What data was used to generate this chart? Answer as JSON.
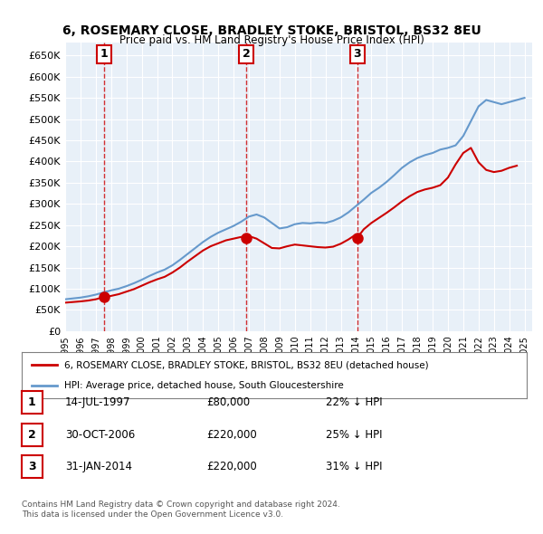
{
  "title1": "6, ROSEMARY CLOSE, BRADLEY STOKE, BRISTOL, BS32 8EU",
  "title2": "Price paid vs. HM Land Registry's House Price Index (HPI)",
  "ylabel": "",
  "xlabel": "",
  "xmin": 1995.0,
  "xmax": 2025.5,
  "ymin": 0,
  "ymax": 680000,
  "yticks": [
    0,
    50000,
    100000,
    150000,
    200000,
    250000,
    300000,
    350000,
    400000,
    450000,
    500000,
    550000,
    600000,
    650000
  ],
  "ytick_labels": [
    "£0",
    "£50K",
    "£100K",
    "£150K",
    "£200K",
    "£250K",
    "£300K",
    "£350K",
    "£400K",
    "£450K",
    "£500K",
    "£550K",
    "£600K",
    "£650K"
  ],
  "sale_dates": [
    1997.54,
    2006.83,
    2014.08
  ],
  "sale_prices": [
    80000,
    220000,
    220000
  ],
  "sale_labels": [
    "1",
    "2",
    "3"
  ],
  "hpi_years": [
    1995,
    1995.5,
    1996,
    1996.5,
    1997,
    1997.5,
    1998,
    1998.5,
    1999,
    1999.5,
    2000,
    2000.5,
    2001,
    2001.5,
    2002,
    2002.5,
    2003,
    2003.5,
    2004,
    2004.5,
    2005,
    2005.5,
    2006,
    2006.5,
    2007,
    2007.5,
    2008,
    2008.5,
    2009,
    2009.5,
    2010,
    2010.5,
    2011,
    2011.5,
    2012,
    2012.5,
    2013,
    2013.5,
    2014,
    2014.5,
    2015,
    2015.5,
    2016,
    2016.5,
    2017,
    2017.5,
    2018,
    2018.5,
    2019,
    2019.5,
    2020,
    2020.5,
    2021,
    2021.5,
    2022,
    2022.5,
    2023,
    2023.5,
    2024,
    2024.5,
    2025
  ],
  "hpi_values": [
    75000,
    77000,
    79000,
    82000,
    86000,
    91000,
    96000,
    100000,
    106000,
    113000,
    121000,
    130000,
    138000,
    145000,
    155000,
    168000,
    182000,
    196000,
    210000,
    222000,
    232000,
    240000,
    248000,
    258000,
    270000,
    275000,
    268000,
    255000,
    242000,
    245000,
    252000,
    255000,
    254000,
    256000,
    255000,
    260000,
    268000,
    280000,
    295000,
    310000,
    326000,
    338000,
    352000,
    368000,
    385000,
    398000,
    408000,
    415000,
    420000,
    428000,
    432000,
    438000,
    460000,
    495000,
    530000,
    545000,
    540000,
    535000,
    540000,
    545000,
    550000
  ],
  "price_years": [
    1995,
    1995.5,
    1996,
    1996.5,
    1997,
    1997.5,
    1998,
    1998.5,
    1999,
    1999.5,
    2000,
    2000.5,
    2001,
    2001.5,
    2002,
    2002.5,
    2003,
    2003.5,
    2004,
    2004.5,
    2005,
    2005.5,
    2006,
    2006.5,
    2006.83,
    2007,
    2007.5,
    2008,
    2008.5,
    2009,
    2009.5,
    2010,
    2010.5,
    2011,
    2011.5,
    2012,
    2012.5,
    2013,
    2013.5,
    2014,
    2014.08,
    2014.5,
    2015,
    2015.5,
    2016,
    2016.5,
    2017,
    2017.5,
    2018,
    2018.5,
    2019,
    2019.5,
    2020,
    2020.5,
    2021,
    2021.5,
    2022,
    2022.5,
    2023,
    2023.5,
    2024,
    2024.5
  ],
  "price_values": [
    67000,
    68500,
    70000,
    72000,
    75000,
    80000,
    83000,
    87000,
    93000,
    99000,
    107000,
    115000,
    122000,
    128000,
    138000,
    150000,
    164000,
    177000,
    190000,
    200000,
    207000,
    214000,
    218000,
    222000,
    220000,
    224000,
    218000,
    207000,
    196000,
    195000,
    200000,
    204000,
    202000,
    200000,
    198000,
    197000,
    199000,
    206000,
    216000,
    228000,
    220000,
    240000,
    255000,
    267000,
    279000,
    292000,
    306000,
    318000,
    328000,
    334000,
    338000,
    344000,
    362000,
    393000,
    420000,
    432000,
    398000,
    380000,
    375000,
    378000,
    385000,
    390000
  ],
  "red_color": "#cc0000",
  "blue_color": "#6699cc",
  "bg_color": "#e8f0f8",
  "grid_color": "#ffffff",
  "legend_label_red": "6, ROSEMARY CLOSE, BRADLEY STOKE, BRISTOL, BS32 8EU (detached house)",
  "legend_label_blue": "HPI: Average price, detached house, South Gloucestershire",
  "table_rows": [
    {
      "num": "1",
      "date": "14-JUL-1997",
      "price": "£80,000",
      "hpi": "22% ↓ HPI"
    },
    {
      "num": "2",
      "date": "30-OCT-2006",
      "price": "£220,000",
      "hpi": "25% ↓ HPI"
    },
    {
      "num": "3",
      "date": "31-JAN-2014",
      "price": "£220,000",
      "hpi": "31% ↓ HPI"
    }
  ],
  "footer": "Contains HM Land Registry data © Crown copyright and database right 2024.\nThis data is licensed under the Open Government Licence v3.0."
}
